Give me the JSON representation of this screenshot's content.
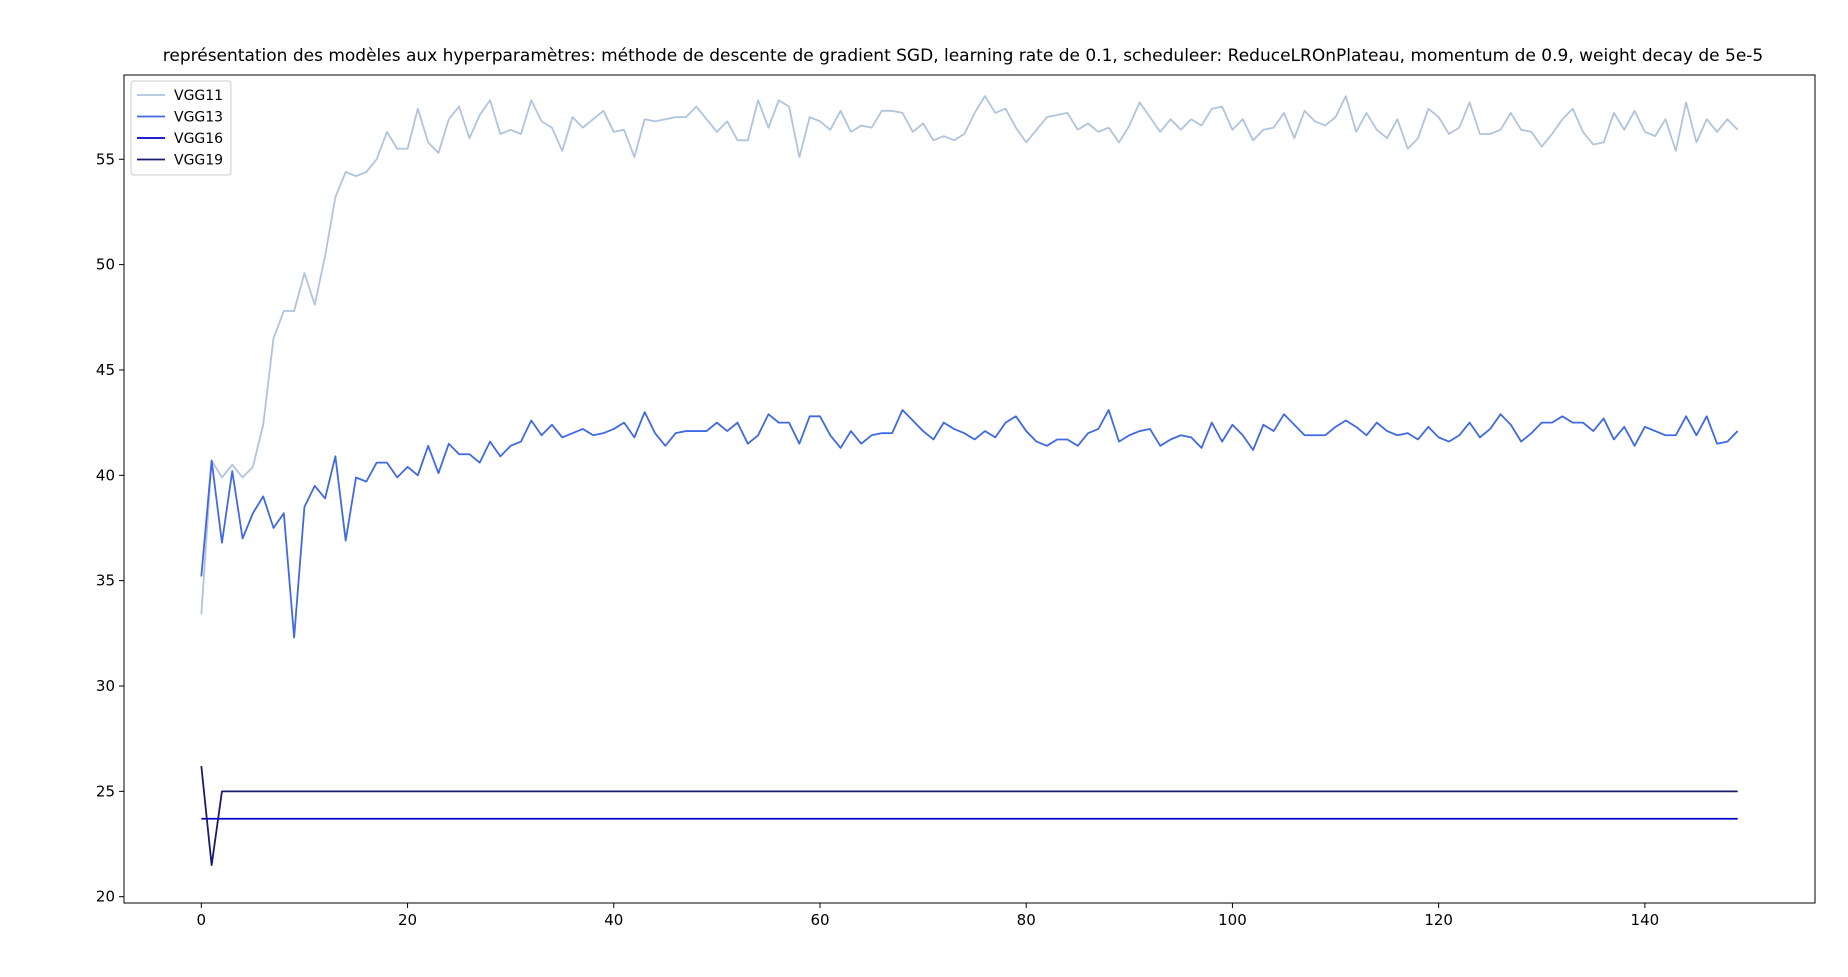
{
  "chart_data": {
    "type": "line",
    "title": "représentation des modèles aux hyperparamètres: méthode de descente de gradient SGD, learning rate de 0.1, scheduleer: ReduceLROnPlateau, momentum de 0.9, weight decay de 5e-5",
    "xlabel": "",
    "ylabel": "",
    "xlim": [
      -7.5,
      156.5
    ],
    "ylim": [
      19.7,
      59.0
    ],
    "xticks": [
      0,
      20,
      40,
      60,
      80,
      100,
      120,
      140
    ],
    "yticks": [
      20,
      25,
      30,
      35,
      40,
      45,
      50,
      55
    ],
    "grid": false,
    "legend_position": "top-left",
    "series": [
      {
        "name": "VGG11",
        "color": "#b0c4de",
        "values": [
          33.4,
          40.7,
          39.9,
          40.5,
          39.9,
          40.4,
          42.4,
          46.5,
          47.8,
          47.8,
          49.6,
          48.1,
          50.4,
          53.2,
          54.4,
          54.2,
          54.4,
          55.0,
          56.3,
          55.5,
          55.5,
          57.4,
          55.8,
          55.3,
          56.9,
          57.5,
          56.0,
          57.1,
          57.8,
          56.2,
          56.4,
          56.2,
          57.8,
          56.8,
          56.5,
          55.4,
          57.0,
          56.5,
          56.9,
          57.3,
          56.3,
          56.4,
          55.1,
          56.9,
          56.8,
          56.9,
          57.0,
          57.0,
          57.5,
          56.9,
          56.3,
          56.8,
          55.9,
          55.9,
          57.8,
          56.5,
          57.8,
          57.5,
          55.1,
          57.0,
          56.8,
          56.4,
          57.3,
          56.3,
          56.6,
          56.5,
          57.3,
          57.3,
          57.2,
          56.3,
          56.7,
          55.9,
          56.1,
          55.9,
          56.2,
          57.2,
          58.0,
          57.2,
          57.4,
          56.5,
          55.8,
          56.4,
          57.0,
          57.1,
          57.2,
          56.4,
          56.7,
          56.3,
          56.5,
          55.8,
          56.6,
          57.7,
          57.0,
          56.3,
          56.9,
          56.4,
          56.9,
          56.6,
          57.4,
          57.5,
          56.4,
          56.9,
          55.9,
          56.4,
          56.5,
          57.2,
          56.0,
          57.3,
          56.8,
          56.6,
          57.0,
          58.0,
          56.3,
          57.2,
          56.4,
          56.0,
          56.9,
          55.5,
          56.0,
          57.4,
          57.0,
          56.2,
          56.5,
          57.7,
          56.2,
          56.2,
          56.4,
          57.2,
          56.4,
          56.3,
          55.6,
          56.2,
          56.9,
          57.4,
          56.3,
          55.7,
          55.8,
          57.2,
          56.4,
          57.3,
          56.3,
          56.1,
          56.9,
          55.4,
          57.7,
          55.8,
          56.9,
          56.3,
          56.9,
          56.4
        ]
      },
      {
        "name": "VGG13",
        "color": "#4169e1",
        "values": [
          35.2,
          40.7,
          36.8,
          40.2,
          37.0,
          38.2,
          39.0,
          37.5,
          38.2,
          32.3,
          38.5,
          39.5,
          38.9,
          40.9,
          36.9,
          39.9,
          39.7,
          40.6,
          40.6,
          39.9,
          40.4,
          40.0,
          41.4,
          40.1,
          41.5,
          41.0,
          41.0,
          40.6,
          41.6,
          40.9,
          41.4,
          41.6,
          42.6,
          41.9,
          42.4,
          41.8,
          42.0,
          42.2,
          41.9,
          42.0,
          42.2,
          42.5,
          41.8,
          43.0,
          42.0,
          41.4,
          42.0,
          42.1,
          42.1,
          42.1,
          42.5,
          42.1,
          42.5,
          41.5,
          41.9,
          42.9,
          42.5,
          42.5,
          41.5,
          42.8,
          42.8,
          41.9,
          41.3,
          42.1,
          41.5,
          41.9,
          42.0,
          42.0,
          43.1,
          42.6,
          42.1,
          41.7,
          42.5,
          42.2,
          42.0,
          41.7,
          42.1,
          41.8,
          42.5,
          42.8,
          42.1,
          41.6,
          41.4,
          41.7,
          41.7,
          41.4,
          42.0,
          42.2,
          43.1,
          41.6,
          41.9,
          42.1,
          42.2,
          41.4,
          41.7,
          41.9,
          41.8,
          41.3,
          42.5,
          41.6,
          42.4,
          41.9,
          41.2,
          42.4,
          42.1,
          42.9,
          42.4,
          41.9,
          41.9,
          41.9,
          42.3,
          42.6,
          42.3,
          41.9,
          42.5,
          42.1,
          41.9,
          42.0,
          41.7,
          42.3,
          41.8,
          41.6,
          41.9,
          42.5,
          41.8,
          42.2,
          42.9,
          42.4,
          41.6,
          42.0,
          42.5,
          42.5,
          42.8,
          42.5,
          42.5,
          42.1,
          42.7,
          41.7,
          42.3,
          41.4,
          42.3,
          42.1,
          41.9,
          41.9,
          42.8,
          41.9,
          42.8,
          41.5,
          41.6,
          42.1
        ]
      },
      {
        "name": "VGG16",
        "color": "#0000cd",
        "values": [
          23.7,
          23.7,
          23.7,
          23.7,
          23.7,
          23.7,
          23.7,
          23.7,
          23.7,
          23.7,
          23.7,
          23.7,
          23.7,
          23.7,
          23.7,
          23.7,
          23.7,
          23.7,
          23.7,
          23.7,
          23.7,
          23.7,
          23.7,
          23.7,
          23.7,
          23.7,
          23.7,
          23.7,
          23.7,
          23.7,
          23.7,
          23.7,
          23.7,
          23.7,
          23.7,
          23.7,
          23.7,
          23.7,
          23.7,
          23.7,
          23.7,
          23.7,
          23.7,
          23.7,
          23.7,
          23.7,
          23.7,
          23.7,
          23.7,
          23.7,
          23.7,
          23.7,
          23.7,
          23.7,
          23.7,
          23.7,
          23.7,
          23.7,
          23.7,
          23.7,
          23.7,
          23.7,
          23.7,
          23.7,
          23.7,
          23.7,
          23.7,
          23.7,
          23.7,
          23.7,
          23.7,
          23.7,
          23.7,
          23.7,
          23.7,
          23.7,
          23.7,
          23.7,
          23.7,
          23.7,
          23.7,
          23.7,
          23.7,
          23.7,
          23.7,
          23.7,
          23.7,
          23.7,
          23.7,
          23.7,
          23.7,
          23.7,
          23.7,
          23.7,
          23.7,
          23.7,
          23.7,
          23.7,
          23.7,
          23.7,
          23.7,
          23.7,
          23.7,
          23.7,
          23.7,
          23.7,
          23.7,
          23.7,
          23.7,
          23.7,
          23.7,
          23.7,
          23.7,
          23.7,
          23.7,
          23.7,
          23.7,
          23.7,
          23.7,
          23.7,
          23.7,
          23.7,
          23.7,
          23.7,
          23.7,
          23.7,
          23.7,
          23.7,
          23.7,
          23.7,
          23.7,
          23.7,
          23.7,
          23.7,
          23.7,
          23.7,
          23.7,
          23.7,
          23.7,
          23.7,
          23.7,
          23.7,
          23.7,
          23.7,
          23.7,
          23.7,
          23.7,
          23.7,
          23.7,
          23.7
        ]
      },
      {
        "name": "VGG19",
        "color": "#191970",
        "values": [
          26.2,
          21.5,
          25.0,
          25.0,
          25.0,
          25.0,
          25.0,
          25.0,
          25.0,
          25.0,
          25.0,
          25.0,
          25.0,
          25.0,
          25.0,
          25.0,
          25.0,
          25.0,
          25.0,
          25.0,
          25.0,
          25.0,
          25.0,
          25.0,
          25.0,
          25.0,
          25.0,
          25.0,
          25.0,
          25.0,
          25.0,
          25.0,
          25.0,
          25.0,
          25.0,
          25.0,
          25.0,
          25.0,
          25.0,
          25.0,
          25.0,
          25.0,
          25.0,
          25.0,
          25.0,
          25.0,
          25.0,
          25.0,
          25.0,
          25.0,
          25.0,
          25.0,
          25.0,
          25.0,
          25.0,
          25.0,
          25.0,
          25.0,
          25.0,
          25.0,
          25.0,
          25.0,
          25.0,
          25.0,
          25.0,
          25.0,
          25.0,
          25.0,
          25.0,
          25.0,
          25.0,
          25.0,
          25.0,
          25.0,
          25.0,
          25.0,
          25.0,
          25.0,
          25.0,
          25.0,
          25.0,
          25.0,
          25.0,
          25.0,
          25.0,
          25.0,
          25.0,
          25.0,
          25.0,
          25.0,
          25.0,
          25.0,
          25.0,
          25.0,
          25.0,
          25.0,
          25.0,
          25.0,
          25.0,
          25.0,
          25.0,
          25.0,
          25.0,
          25.0,
          25.0,
          25.0,
          25.0,
          25.0,
          25.0,
          25.0,
          25.0,
          25.0,
          25.0,
          25.0,
          25.0,
          25.0,
          25.0,
          25.0,
          25.0,
          25.0,
          25.0,
          25.0,
          25.0,
          25.0,
          25.0,
          25.0,
          25.0,
          25.0,
          25.0,
          25.0,
          25.0,
          25.0,
          25.0,
          25.0,
          25.0,
          25.0,
          25.0,
          25.0,
          25.0,
          25.0,
          25.0,
          25.0,
          25.0,
          25.0,
          25.0,
          25.0,
          25.0,
          25.0,
          25.0,
          25.0
        ]
      }
    ]
  }
}
